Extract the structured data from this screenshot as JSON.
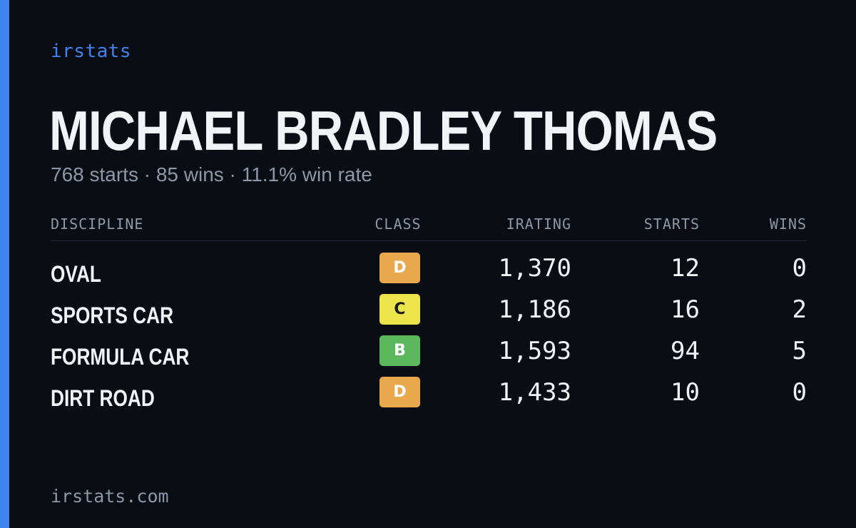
{
  "brand": "irstats",
  "player_name": "MICHAEL BRADLEY THOMAS",
  "summary": "768 starts · 85 wins · 11.1% win rate",
  "table": {
    "headers": {
      "discipline": "DISCIPLINE",
      "class": "CLASS",
      "irating": "IRATING",
      "starts": "STARTS",
      "wins": "WINS"
    },
    "rows": [
      {
        "discipline": "OVAL",
        "class": "D",
        "class_color": "#eaa84c",
        "class_text_color": "#ffffff",
        "irating": "1,370",
        "starts": "12",
        "wins": "0"
      },
      {
        "discipline": "SPORTS CAR",
        "class": "C",
        "class_color": "#ece44b",
        "class_text_color": "#1a1a1a",
        "irating": "1,186",
        "starts": "16",
        "wins": "2"
      },
      {
        "discipline": "FORMULA CAR",
        "class": "B",
        "class_color": "#5cb85c",
        "class_text_color": "#ffffff",
        "irating": "1,593",
        "starts": "94",
        "wins": "5"
      },
      {
        "discipline": "DIRT ROAD",
        "class": "D",
        "class_color": "#eaa84c",
        "class_text_color": "#ffffff",
        "irating": "1,433",
        "starts": "10",
        "wins": "0"
      }
    ]
  },
  "footer": "irstats.com",
  "colors": {
    "accent": "#3f82f0",
    "background": "#0a0d14",
    "muted_text": "#8e97a6",
    "primary_text": "#f1f3f7"
  }
}
